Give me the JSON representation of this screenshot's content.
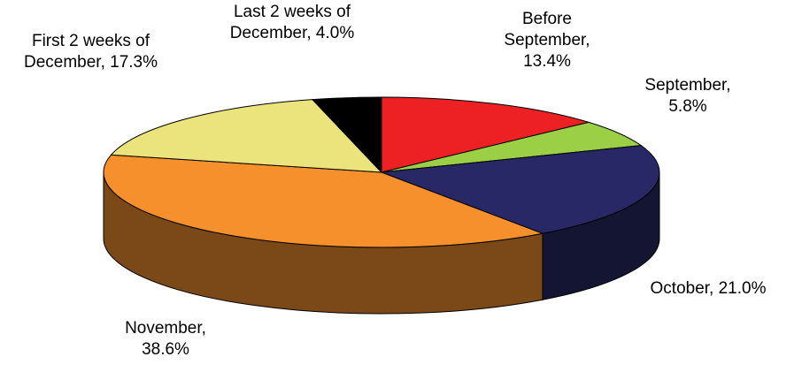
{
  "chart_data": {
    "type": "pie3d",
    "values": [
      13.4,
      5.8,
      21.0,
      38.6,
      17.3,
      4.0
    ],
    "value_labels": [
      "Before September, 13.4%",
      "September, 5.8%",
      "October, 21.0%",
      "November, 38.6%",
      "First 2 weeks of December, 17.3%",
      "Last 2 weeks of December, 4.0%"
    ],
    "colors": [
      "#ed2024",
      "#9bcf45",
      "#282866",
      "#f5902d",
      "#ebe47c",
      "#000000"
    ]
  }
}
